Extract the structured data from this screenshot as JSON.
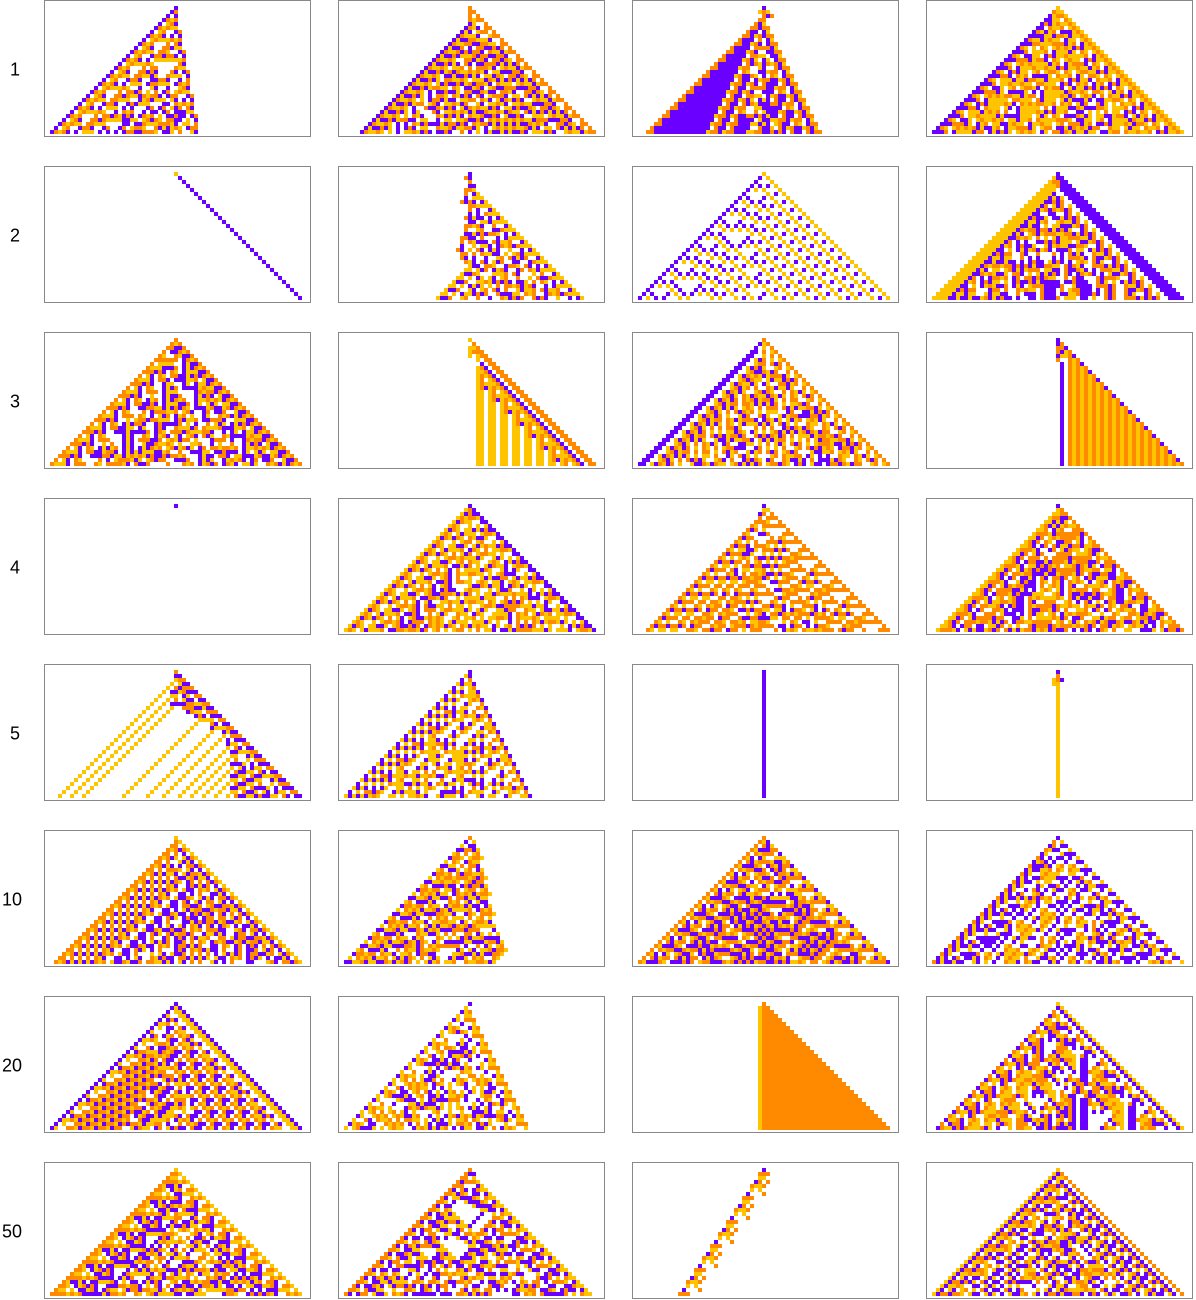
{
  "rows": [
    {
      "label": "1"
    },
    {
      "label": "2"
    },
    {
      "label": "3"
    },
    {
      "label": "4"
    },
    {
      "label": "5"
    },
    {
      "label": "10"
    },
    {
      "label": "20"
    },
    {
      "label": "50"
    }
  ]
}
